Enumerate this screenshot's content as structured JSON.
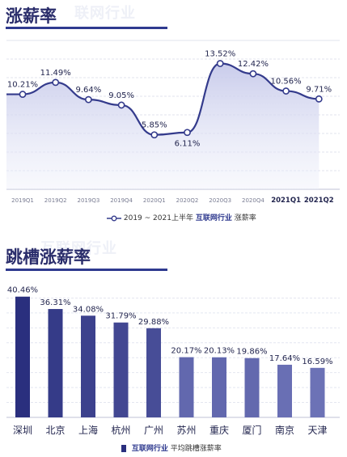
{
  "sections": {
    "top": {
      "title": "涨薪率",
      "watermark": "联网行业",
      "legend_range": "2019 ~ 2021上半年",
      "legend_industry": "互联网行业",
      "legend_metric": "涨薪率"
    },
    "bottom": {
      "title": "跳槽涨薪率",
      "watermark": "互联网行业",
      "legend_industry": "互联网行业",
      "legend_metric": "平均跳槽涨薪率"
    }
  },
  "colors": {
    "accent": "#2f3a8f",
    "line": "#343b8c",
    "bar_light": "#6c72b6",
    "bar_dark": "#2a2f7e"
  },
  "chart_data": [
    {
      "type": "area",
      "title": "涨薪率",
      "categories": [
        "2019Q1",
        "2019Q2",
        "2019Q3",
        "2019Q4",
        "2020Q1",
        "2020Q2",
        "2020Q3",
        "2020Q4",
        "2021Q1",
        "2021Q2"
      ],
      "bold_categories": [
        "2021Q1",
        "2021Q2"
      ],
      "series": [
        {
          "name": "2019 ~ 2021上半年 互联网行业 涨薪率",
          "values": [
            10.21,
            11.49,
            9.64,
            9.05,
            5.85,
            6.11,
            13.52,
            12.42,
            10.56,
            9.71
          ],
          "labels": [
            "10.21%",
            "11.49%",
            "9.64%",
            "9.05%",
            "5.85%",
            "6.11%",
            "13.52%",
            "12.42%",
            "10.56%",
            "9.71%"
          ]
        }
      ],
      "ylim": [
        0,
        16
      ],
      "grid": true,
      "legend": "bottom"
    },
    {
      "type": "bar",
      "title": "跳槽涨薪率",
      "categories": [
        "深圳",
        "北京",
        "上海",
        "杭州",
        "广州",
        "苏州",
        "重庆",
        "厦门",
        "南京",
        "天津"
      ],
      "series": [
        {
          "name": "互联网行业 平均跳槽涨薪率",
          "values": [
            40.46,
            36.31,
            34.08,
            31.79,
            29.88,
            20.17,
            20.13,
            19.86,
            17.64,
            16.59
          ],
          "labels": [
            "40.46%",
            "36.31%",
            "34.08%",
            "31.79%",
            "29.88%",
            "20.17%",
            "20.13%",
            "19.86%",
            "17.64%",
            "16.59%"
          ]
        }
      ],
      "ylim": [
        0,
        45
      ],
      "grid": true,
      "legend": "bottom"
    }
  ]
}
